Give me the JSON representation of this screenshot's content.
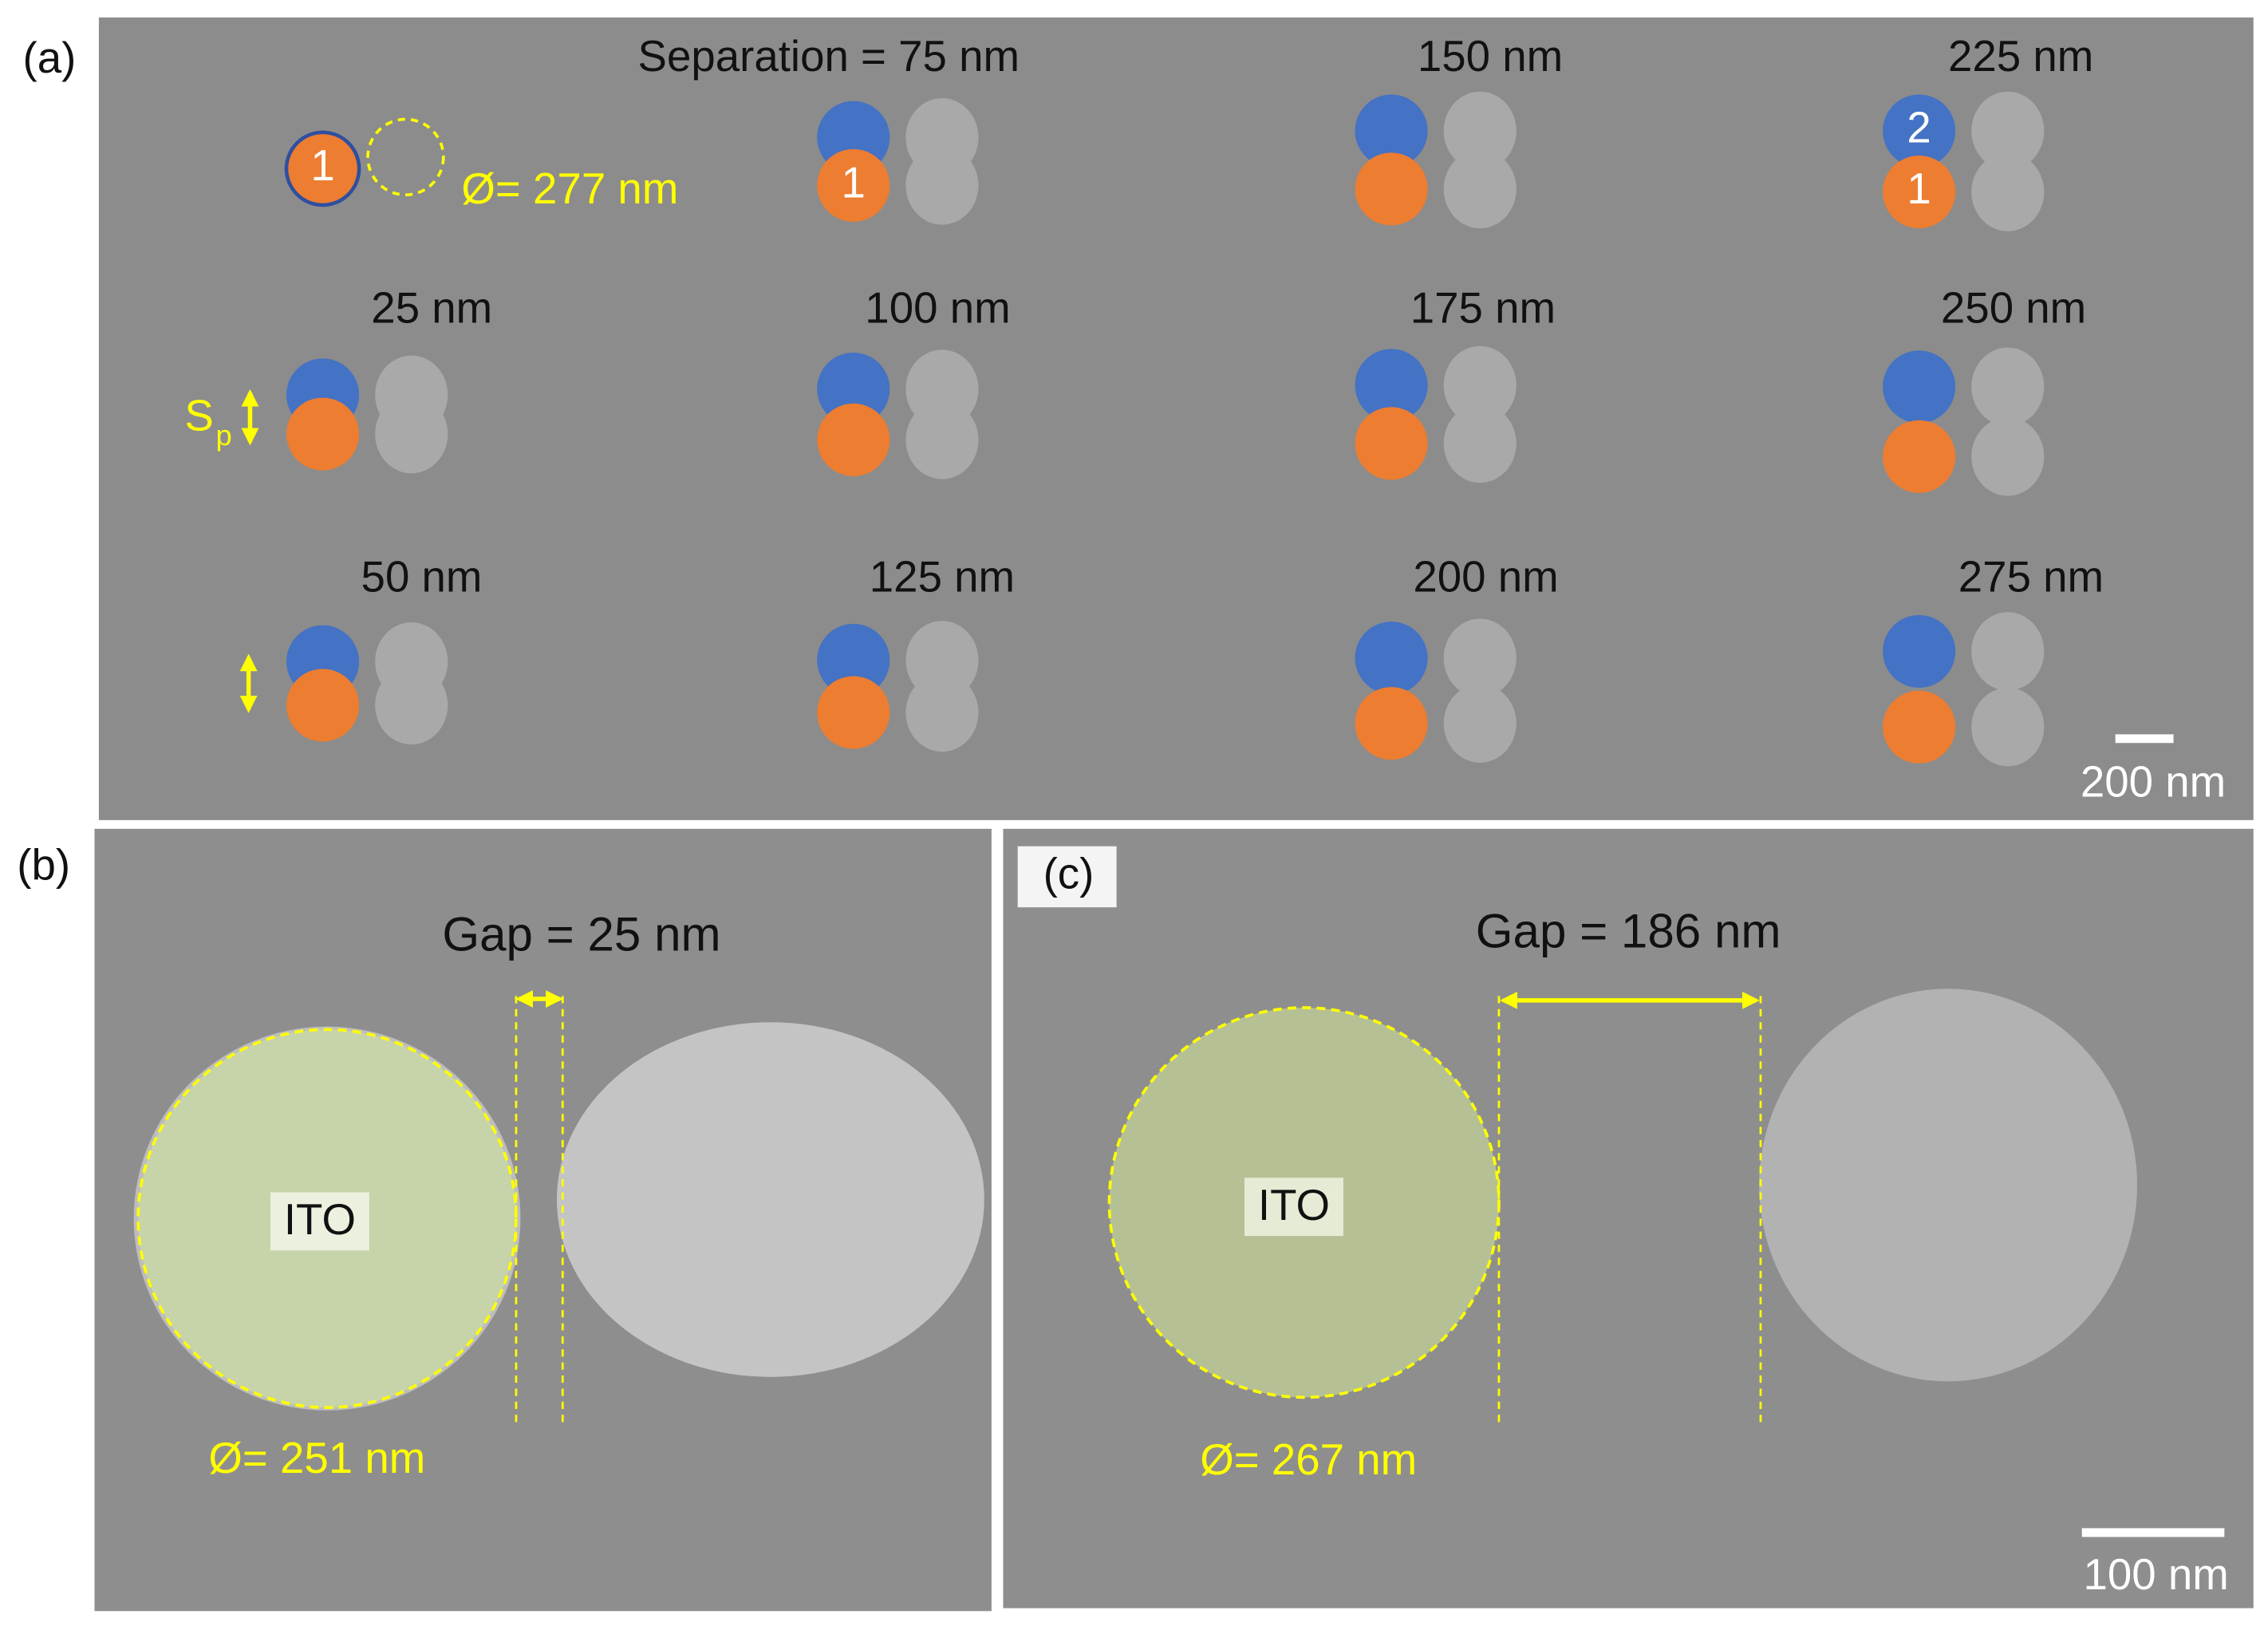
{
  "panel_a": {
    "label": "(a)",
    "title": "Separation = 75 nm",
    "separations": [
      "150 nm",
      "225 nm",
      "25 nm",
      "100 nm",
      "175 nm",
      "250 nm",
      "50 nm",
      "125 nm",
      "200 nm",
      "275 nm"
    ],
    "diameter": "Ø= 277 nm",
    "markers": [
      "1",
      "1",
      "2",
      "1"
    ],
    "sp_label": {
      "main": "S",
      "sub": "p"
    },
    "scale_bar": "200 nm"
  },
  "panel_b": {
    "label": "(b)",
    "gap": "Gap = 25 nm",
    "material": "ITO",
    "diameter": "Ø= 251 nm"
  },
  "panel_c": {
    "label": "(c)",
    "gap": "Gap = 186 nm",
    "material": "ITO",
    "diameter": "Ø= 267 nm",
    "scale_bar": "100 nm"
  }
}
